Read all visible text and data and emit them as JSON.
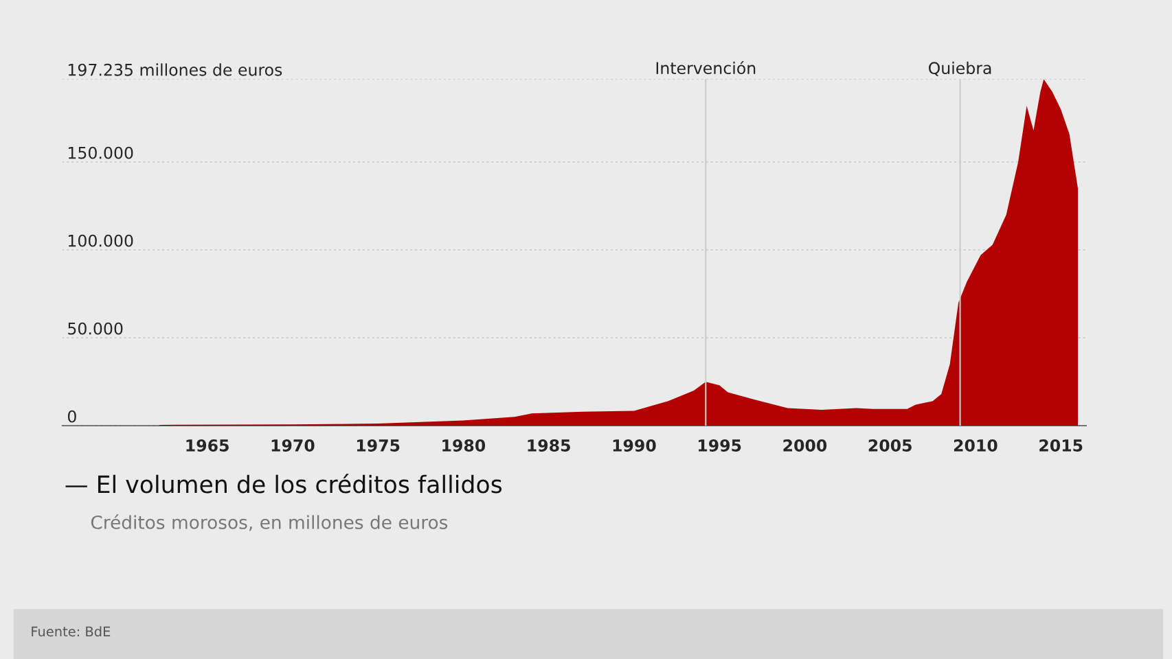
{
  "chart_data": {
    "type": "area",
    "title": "— El volumen de los créditos fallidos",
    "subtitle": "Créditos morosos, en millones de euros",
    "annotations": [
      "Fuente: BdE"
    ],
    "x": [
      1962.2,
      1970,
      1975,
      1980,
      1983,
      1984,
      1987,
      1990,
      1992,
      1993.5,
      1994.2,
      1995,
      1995.5,
      1997,
      1999,
      2001,
      2003,
      2004,
      2006,
      2006.5,
      2007.5,
      2008,
      2008.5,
      2009,
      2009.5,
      2010.3,
      2011,
      2011.8,
      2012.5,
      2013,
      2013.4,
      2013.8,
      2014,
      2014.5,
      2015,
      2015.5,
      2016
    ],
    "series": [
      {
        "color": "#b30000",
        "values": [
          500,
          700,
          1200,
          3000,
          5000,
          7000,
          8000,
          8500,
          14000,
          20000,
          25000,
          23000,
          19000,
          15000,
          10000,
          9000,
          10000,
          9500,
          9500,
          12000,
          14000,
          18000,
          35000,
          70000,
          82000,
          97000,
          103000,
          120000,
          150000,
          182000,
          168000,
          190000,
          197235,
          190000,
          180000,
          166000,
          135000
        ]
      }
    ],
    "xlim": [
      1956.5,
      2016.5
    ],
    "xticks": [
      1965,
      1970,
      1975,
      1980,
      1985,
      1990,
      1995,
      2000,
      2005,
      2010,
      2015
    ],
    "ylim": [
      0,
      197235
    ],
    "yticks": [
      {
        "value": 0,
        "label": "0"
      },
      {
        "value": 50000,
        "label": "50.000"
      },
      {
        "value": 100000,
        "label": "100.000"
      },
      {
        "value": 150000,
        "label": "150.000"
      },
      {
        "value": 197235,
        "label": "197.235 millones de euros"
      }
    ],
    "grid": "y",
    "ref_lines": [
      {
        "axis": "x",
        "value": 1994.2,
        "label": "Intervención",
        "color": "#cccccc"
      },
      {
        "axis": "x",
        "value": 2009.1,
        "label": "Quiebra",
        "color": "#cccccc"
      }
    ]
  }
}
